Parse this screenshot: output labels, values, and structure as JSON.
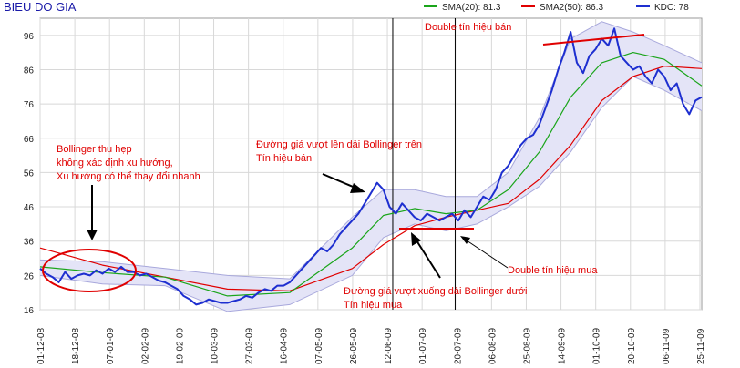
{
  "chart_data": {
    "type": "line",
    "title": "BIEU DO GIA",
    "legend": {
      "placement": "top-right",
      "items": [
        {
          "label": "SMA(20): 81.3",
          "color": "#1aa51a"
        },
        {
          "label": "SMA2(50): 86.3",
          "color": "#e00000"
        },
        {
          "label": "KDC: 78",
          "color": "#1e2fd0"
        }
      ]
    },
    "grid": true,
    "colors": {
      "price": "#1e2fd0",
      "sma20": "#1aa51a",
      "sma50": "#e00000",
      "band_fill": "#e4e4f7",
      "band_edge": "#a8a8dc",
      "annotation": "#e00000"
    },
    "ylim": [
      16,
      101
    ],
    "y_ticks": [
      "16",
      "26",
      "36",
      "46",
      "56",
      "66",
      "76",
      "86",
      "96"
    ],
    "x_ticks": [
      "01-12-08",
      "18-12-08",
      "07-01-09",
      "02-02-09",
      "19-02-09",
      "10-03-09",
      "27-03-09",
      "16-04-09",
      "07-05-09",
      "26-05-09",
      "12-06-09",
      "01-07-09",
      "20-07-09",
      "06-08-09",
      "25-08-09",
      "14-09-09",
      "01-10-09",
      "20-10-09",
      "06-11-09",
      "25-11-09"
    ],
    "series": [
      {
        "name": "KDC",
        "values": [
          [
            0,
            28
          ],
          [
            2,
            26.5
          ],
          [
            4,
            25.5
          ],
          [
            6,
            24
          ],
          [
            8,
            27
          ],
          [
            10,
            25
          ],
          [
            12,
            26
          ],
          [
            14,
            26.5
          ],
          [
            16,
            26
          ],
          [
            18,
            27.5
          ],
          [
            20,
            26.5
          ],
          [
            22,
            28
          ],
          [
            24,
            27
          ],
          [
            26,
            28.5
          ],
          [
            28,
            27
          ],
          [
            30,
            27
          ],
          [
            32,
            26
          ],
          [
            34,
            26.5
          ],
          [
            36,
            25.5
          ],
          [
            38,
            24.5
          ],
          [
            40,
            24
          ],
          [
            42,
            23
          ],
          [
            44,
            22
          ],
          [
            46,
            20
          ],
          [
            48,
            19
          ],
          [
            50,
            17.5
          ],
          [
            52,
            18
          ],
          [
            54,
            19
          ],
          [
            56,
            18.5
          ],
          [
            58,
            18
          ],
          [
            60,
            18
          ],
          [
            62,
            18.5
          ],
          [
            64,
            19
          ],
          [
            66,
            20
          ],
          [
            68,
            19.5
          ],
          [
            70,
            21
          ],
          [
            72,
            22
          ],
          [
            74,
            21.5
          ],
          [
            76,
            23
          ],
          [
            78,
            23
          ],
          [
            80,
            24
          ],
          [
            82,
            26
          ],
          [
            84,
            28
          ],
          [
            86,
            30
          ],
          [
            88,
            32
          ],
          [
            90,
            34
          ],
          [
            92,
            33
          ],
          [
            94,
            35
          ],
          [
            96,
            38
          ],
          [
            98,
            40
          ],
          [
            100,
            42
          ],
          [
            102,
            44
          ],
          [
            104,
            47
          ],
          [
            106,
            50
          ],
          [
            108,
            53
          ],
          [
            110,
            51
          ],
          [
            112,
            46
          ],
          [
            114,
            44
          ],
          [
            116,
            47
          ],
          [
            118,
            45
          ],
          [
            120,
            43
          ],
          [
            122,
            42
          ],
          [
            124,
            44
          ],
          [
            126,
            43
          ],
          [
            128,
            42
          ],
          [
            130,
            43
          ],
          [
            132,
            44
          ],
          [
            134,
            42
          ],
          [
            136,
            45
          ],
          [
            138,
            43
          ],
          [
            140,
            46
          ],
          [
            142,
            49
          ],
          [
            144,
            48
          ],
          [
            146,
            51
          ],
          [
            148,
            56
          ],
          [
            150,
            58
          ],
          [
            152,
            61
          ],
          [
            154,
            64
          ],
          [
            156,
            66
          ],
          [
            158,
            67
          ],
          [
            160,
            70
          ],
          [
            162,
            75
          ],
          [
            164,
            80
          ],
          [
            166,
            86
          ],
          [
            168,
            91
          ],
          [
            170,
            97
          ],
          [
            172,
            88
          ],
          [
            174,
            85
          ],
          [
            176,
            90
          ],
          [
            178,
            92
          ],
          [
            180,
            95
          ],
          [
            182,
            93
          ],
          [
            184,
            98
          ],
          [
            186,
            90
          ],
          [
            188,
            88
          ],
          [
            190,
            86
          ],
          [
            192,
            87
          ],
          [
            194,
            84
          ],
          [
            196,
            82
          ],
          [
            198,
            86
          ],
          [
            200,
            84
          ],
          [
            202,
            80
          ],
          [
            204,
            82
          ],
          [
            206,
            76
          ],
          [
            208,
            73
          ],
          [
            210,
            77
          ],
          [
            212,
            78
          ]
        ]
      },
      {
        "name": "SMA(20)",
        "values": [
          [
            0,
            28.5
          ],
          [
            20,
            26.8
          ],
          [
            40,
            25.5
          ],
          [
            60,
            20
          ],
          [
            80,
            21
          ],
          [
            100,
            34
          ],
          [
            110,
            43.5
          ],
          [
            120,
            45.5
          ],
          [
            130,
            44
          ],
          [
            140,
            45
          ],
          [
            150,
            51
          ],
          [
            160,
            62
          ],
          [
            170,
            78
          ],
          [
            180,
            88
          ],
          [
            190,
            91
          ],
          [
            200,
            89
          ],
          [
            212,
            81.3
          ]
        ]
      },
      {
        "name": "SMA2(50)",
        "values": [
          [
            0,
            34
          ],
          [
            20,
            29
          ],
          [
            40,
            25.5
          ],
          [
            60,
            22
          ],
          [
            80,
            21.5
          ],
          [
            100,
            28
          ],
          [
            110,
            35
          ],
          [
            120,
            40.5
          ],
          [
            130,
            43
          ],
          [
            140,
            45
          ],
          [
            150,
            47
          ],
          [
            160,
            54
          ],
          [
            170,
            64
          ],
          [
            180,
            77
          ],
          [
            190,
            84
          ],
          [
            200,
            87
          ],
          [
            212,
            86.3
          ]
        ]
      }
    ],
    "bollinger": {
      "upper": [
        [
          0,
          30.5
        ],
        [
          20,
          30
        ],
        [
          40,
          28
        ],
        [
          60,
          26
        ],
        [
          80,
          25
        ],
        [
          100,
          43
        ],
        [
          110,
          51
        ],
        [
          120,
          51
        ],
        [
          130,
          49
        ],
        [
          140,
          49
        ],
        [
          150,
          56
        ],
        [
          160,
          72
        ],
        [
          170,
          95
        ],
        [
          180,
          100
        ],
        [
          190,
          97
        ],
        [
          200,
          93
        ],
        [
          212,
          88
        ]
      ],
      "lower": [
        [
          0,
          26
        ],
        [
          20,
          23.5
        ],
        [
          40,
          23
        ],
        [
          60,
          15.5
        ],
        [
          80,
          17.5
        ],
        [
          100,
          26
        ],
        [
          110,
          37
        ],
        [
          120,
          41
        ],
        [
          130,
          39
        ],
        [
          140,
          41
        ],
        [
          150,
          46
        ],
        [
          160,
          52
        ],
        [
          170,
          62
        ],
        [
          180,
          75
        ],
        [
          190,
          84
        ],
        [
          200,
          80
        ],
        [
          212,
          74
        ]
      ]
    },
    "vertical_lines": [
      113,
      133
    ],
    "annotations": [
      {
        "lines": [
          "Bollinger thu hẹp",
          "không xác định xu hướng,",
          "Xu hướng có thể thay đổi nhanh"
        ]
      },
      {
        "lines": [
          "Đường giá vượt lên dải Bollinger trên",
          "Tín hiệu bán"
        ]
      },
      {
        "lines": [
          "Double tín hiệu bán"
        ]
      },
      {
        "lines": [
          "Double tín hiệu mua"
        ]
      },
      {
        "lines": [
          "Đường giá vượt xuống  dải Bollinger dưới",
          "Tín hiệu mua"
        ]
      }
    ]
  }
}
